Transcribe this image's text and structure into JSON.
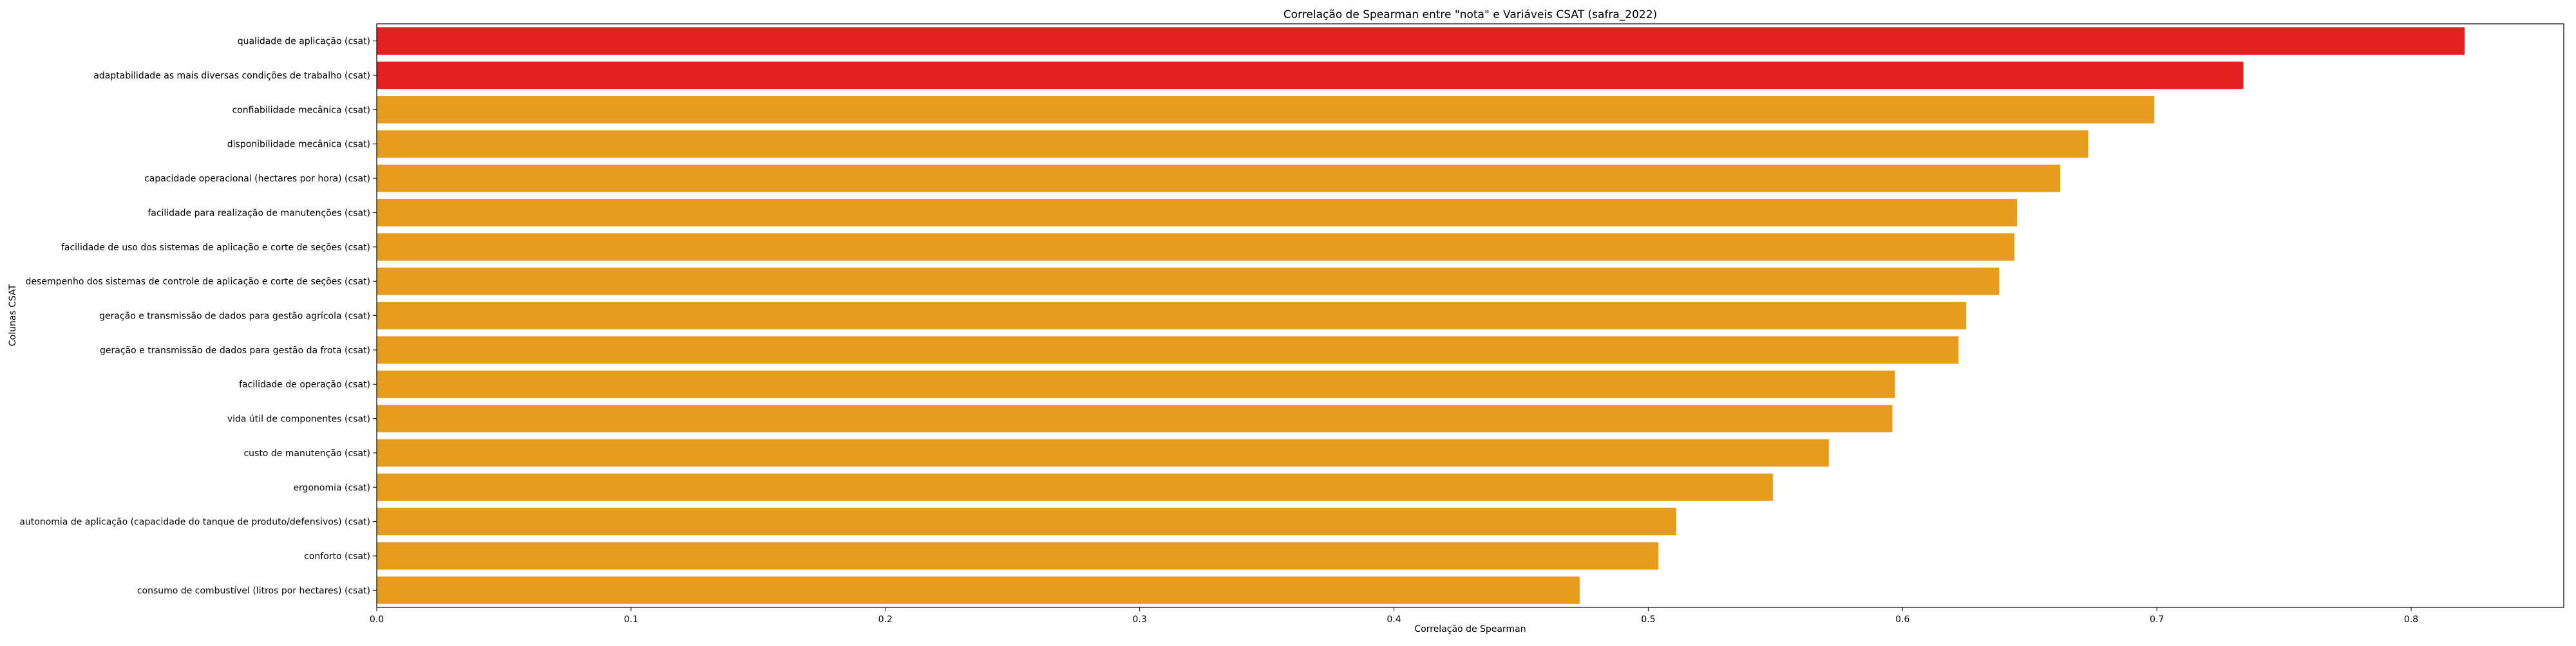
{
  "chart_data": {
    "type": "bar",
    "orientation": "horizontal",
    "title": "Correlação de Spearman entre \"nota\" e Variáveis CSAT (safra_2022)",
    "xlabel": "Correlação de Spearman",
    "ylabel": "Colunas CSAT",
    "xlim": [
      0,
      0.86
    ],
    "xticks": [
      "0.0",
      "0.1",
      "0.2",
      "0.3",
      "0.4",
      "0.5",
      "0.6",
      "0.7",
      "0.8"
    ],
    "grid": false,
    "legend": "none",
    "colors": {
      "highlight": "#e41f1f",
      "default": "#e69c1f"
    },
    "categories": [
      "qualidade de aplicação (csat)",
      "adaptabilidade as mais diversas condições de trabalho (csat)",
      "confiabilidade mecânica (csat)",
      "disponibilidade mecânica (csat)",
      "capacidade operacional (hectares por hora) (csat)",
      "facilidade para realização de manutenções (csat)",
      "facilidade de uso dos sistemas de aplicação e corte de seções (csat)",
      "desempenho dos sistemas de controle de aplicação e corte de seções (csat)",
      "geração e transmissão de dados para gestão agrícola (csat)",
      "geração e transmissão de dados para gestão da frota (csat)",
      "facilidade de operação (csat)",
      "vida útil de componentes (csat)",
      "custo de manutenção (csat)",
      "ergonomia (csat)",
      "autonomia de aplicação (capacidade do tanque de produto/defensivos) (csat)",
      "conforto (csat)",
      "consumo de combustível (litros por hectares) (csat)"
    ],
    "values": [
      0.821,
      0.734,
      0.699,
      0.673,
      0.662,
      0.645,
      0.644,
      0.638,
      0.625,
      0.622,
      0.597,
      0.596,
      0.571,
      0.549,
      0.511,
      0.504,
      0.473
    ],
    "highlighted": [
      true,
      true,
      false,
      false,
      false,
      false,
      false,
      false,
      false,
      false,
      false,
      false,
      false,
      false,
      false,
      false,
      false
    ]
  }
}
